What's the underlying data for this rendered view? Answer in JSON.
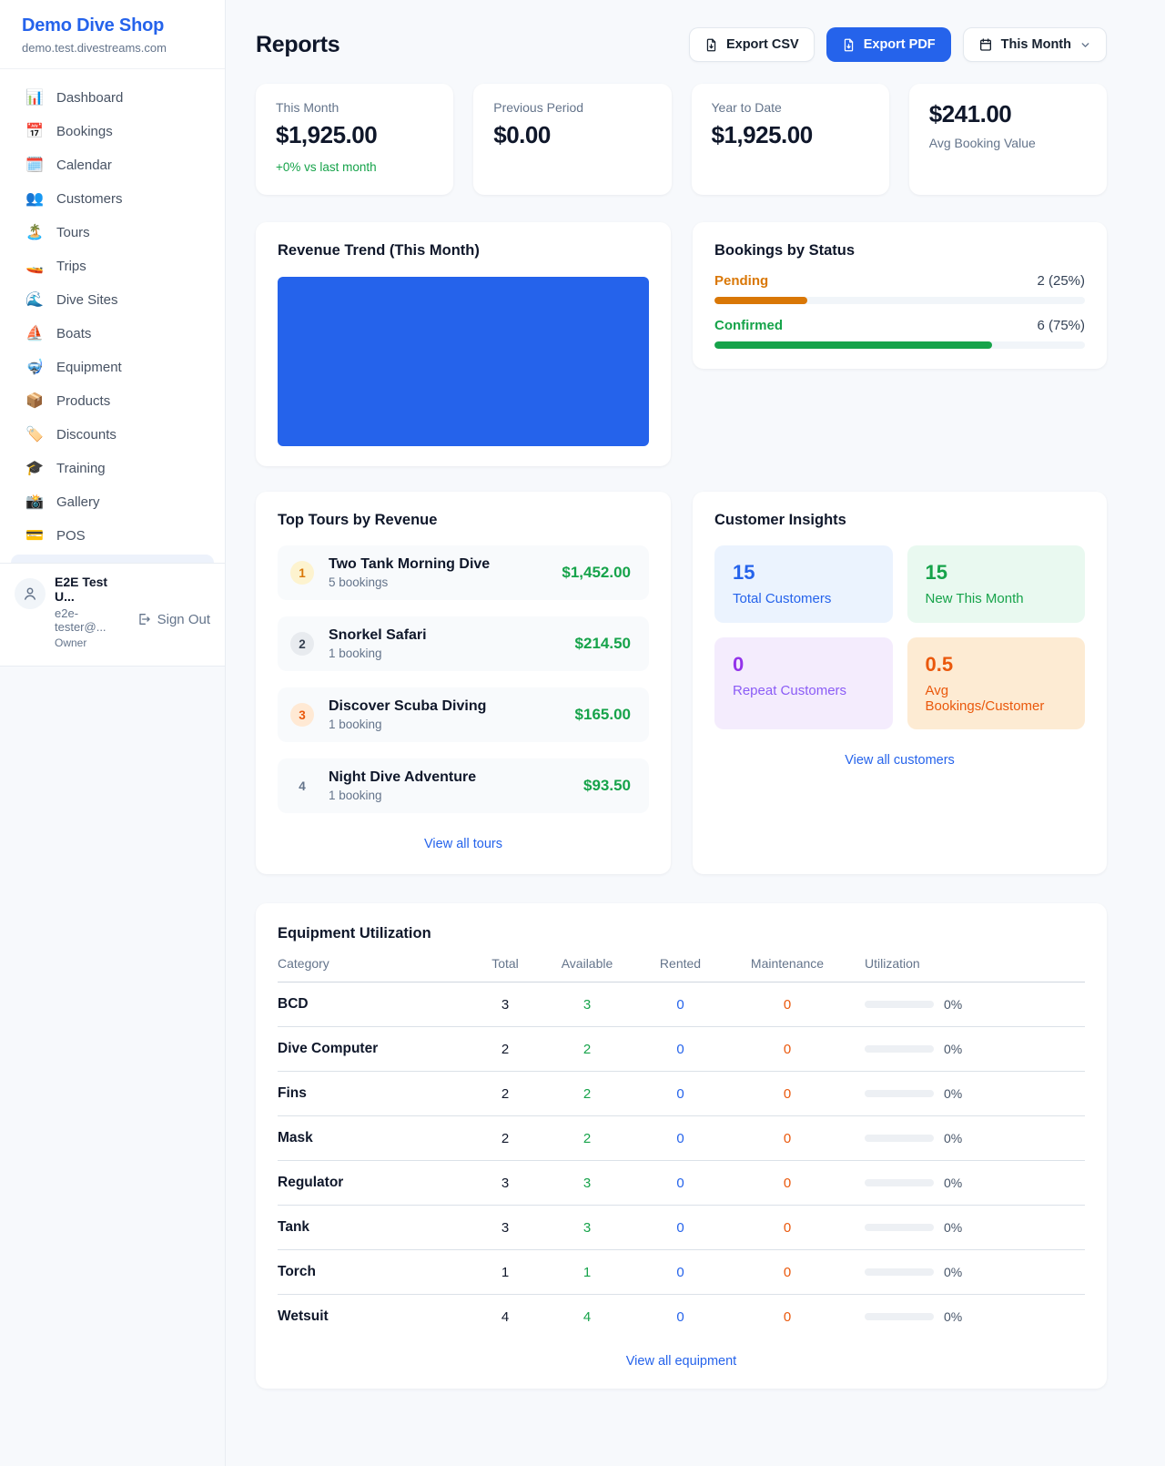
{
  "sidebar": {
    "brand": {
      "name": "Demo Dive Shop",
      "domain": "demo.test.divestreams.com"
    },
    "nav": [
      {
        "label": "Dashboard",
        "icon": "📊",
        "icon_name": "dashboard-icon"
      },
      {
        "label": "Bookings",
        "icon": "📅",
        "icon_name": "bookings-calendar-icon"
      },
      {
        "label": "Calendar",
        "icon": "🗓️",
        "icon_name": "calendar-icon"
      },
      {
        "label": "Customers",
        "icon": "👥",
        "icon_name": "customers-icon"
      },
      {
        "label": "Tours",
        "icon": "🏝️",
        "icon_name": "tours-island-icon"
      },
      {
        "label": "Trips",
        "icon": "🚤",
        "icon_name": "trips-boat-icon"
      },
      {
        "label": "Dive Sites",
        "icon": "🌊",
        "icon_name": "dive-sites-wave-icon"
      },
      {
        "label": "Boats",
        "icon": "⛵",
        "icon_name": "boats-sailboat-icon"
      },
      {
        "label": "Equipment",
        "icon": "🤿",
        "icon_name": "equipment-mask-icon"
      },
      {
        "label": "Products",
        "icon": "📦",
        "icon_name": "products-package-icon"
      },
      {
        "label": "Discounts",
        "icon": "🏷️",
        "icon_name": "discounts-tag-icon"
      },
      {
        "label": "Training",
        "icon": "🎓",
        "icon_name": "training-cap-icon"
      },
      {
        "label": "Gallery",
        "icon": "📸",
        "icon_name": "gallery-camera-icon"
      },
      {
        "label": "POS",
        "icon": "💳",
        "icon_name": "pos-card-icon"
      }
    ],
    "user": {
      "name": "E2E Test U...",
      "email": "e2e-tester@...",
      "role": "Owner",
      "sign_out": "Sign Out"
    }
  },
  "header": {
    "title": "Reports",
    "export_csv": "Export CSV",
    "export_pdf": "Export PDF",
    "period": "This Month",
    "accent_color": "#2563eb"
  },
  "stats": [
    {
      "label": "This Month",
      "value": "$1,925.00",
      "delta": "+0% vs last month"
    },
    {
      "label": "Previous Period",
      "value": "$0.00"
    },
    {
      "label": "Year to Date",
      "value": "$1,925.00"
    },
    {
      "label": "Avg Booking Value",
      "value": "$241.00",
      "value_first": true
    }
  ],
  "revenue_trend": {
    "title": "Revenue Trend (This Month)",
    "chart_data": {
      "type": "area",
      "title": "Revenue Trend (This Month)",
      "categories": [
        "This Month"
      ],
      "series": [
        {
          "name": "Revenue",
          "values": [
            1925
          ]
        }
      ],
      "ylim": [
        0,
        1925
      ],
      "legend": false,
      "grid": false,
      "note": "solid filled area covering entire plot region",
      "color": "#2563eb"
    }
  },
  "bookings_by_status": {
    "title": "Bookings by Status",
    "items": [
      {
        "label": "Pending",
        "value": "2 (25%)",
        "count": 2,
        "pct": 25,
        "color": "#d97706"
      },
      {
        "label": "Confirmed",
        "value": "6 (75%)",
        "count": 6,
        "pct": 75,
        "color": "#16a34a"
      }
    ]
  },
  "top_tours": {
    "title": "Top Tours by Revenue",
    "items": [
      {
        "rank": "1",
        "name": "Two Tank Morning Dive",
        "bookings": "5 bookings",
        "revenue": "$1,452.00",
        "badge_bg": "#fdf3cf",
        "badge_color": "#d97706"
      },
      {
        "rank": "2",
        "name": "Snorkel Safari",
        "bookings": "1 booking",
        "revenue": "$214.50",
        "badge_bg": "#e8ebef",
        "badge_color": "#374151"
      },
      {
        "rank": "3",
        "name": "Discover Scuba Diving",
        "bookings": "1 booking",
        "revenue": "$165.00",
        "badge_bg": "#ffe9d4",
        "badge_color": "#ea580c"
      },
      {
        "rank": "4",
        "name": "Night Dive Adventure",
        "bookings": "1 booking",
        "revenue": "$93.50",
        "badge_bg": "transparent",
        "badge_color": "#64748b"
      }
    ],
    "revenue_color": "#16a34a",
    "link": "View all tours"
  },
  "customer_insights": {
    "title": "Customer Insights",
    "tiles": [
      {
        "value": "15",
        "label": "Total Customers",
        "bg": "#ebf3fe",
        "value_color": "#2563eb",
        "label_color": "#2563eb"
      },
      {
        "value": "15",
        "label": "New This Month",
        "bg": "#e9f9f0",
        "value_color": "#16a34a",
        "label_color": "#16a34a"
      },
      {
        "value": "0",
        "label": "Repeat Customers",
        "bg": "#f4ecfd",
        "value_color": "#9333ea",
        "label_color": "#8b5cf6"
      },
      {
        "value": "0.5",
        "label": "Avg Bookings/Customer",
        "bg": "#fdebd3",
        "value_color": "#ea580c",
        "label_color": "#ea580c"
      }
    ],
    "link": "View all customers"
  },
  "equipment": {
    "title": "Equipment Utilization",
    "columns": [
      "Category",
      "Total",
      "Available",
      "Rented",
      "Maintenance",
      "Utilization"
    ],
    "column_colors": {
      "total": "#0f172a",
      "available": "#16a34a",
      "rented": "#2563eb",
      "maintenance": "#ea580c"
    },
    "rows": [
      {
        "category": "BCD",
        "total": "3",
        "available": "3",
        "rented": "0",
        "maintenance": "0",
        "utilization_pct": 0,
        "utilization_label": "0%"
      },
      {
        "category": "Dive Computer",
        "total": "2",
        "available": "2",
        "rented": "0",
        "maintenance": "0",
        "utilization_pct": 0,
        "utilization_label": "0%"
      },
      {
        "category": "Fins",
        "total": "2",
        "available": "2",
        "rented": "0",
        "maintenance": "0",
        "utilization_pct": 0,
        "utilization_label": "0%"
      },
      {
        "category": "Mask",
        "total": "2",
        "available": "2",
        "rented": "0",
        "maintenance": "0",
        "utilization_pct": 0,
        "utilization_label": "0%"
      },
      {
        "category": "Regulator",
        "total": "3",
        "available": "3",
        "rented": "0",
        "maintenance": "0",
        "utilization_pct": 0,
        "utilization_label": "0%"
      },
      {
        "category": "Tank",
        "total": "3",
        "available": "3",
        "rented": "0",
        "maintenance": "0",
        "utilization_pct": 0,
        "utilization_label": "0%"
      },
      {
        "category": "Torch",
        "total": "1",
        "available": "1",
        "rented": "0",
        "maintenance": "0",
        "utilization_pct": 0,
        "utilization_label": "0%"
      },
      {
        "category": "Wetsuit",
        "total": "4",
        "available": "4",
        "rented": "0",
        "maintenance": "0",
        "utilization_pct": 0,
        "utilization_label": "0%"
      }
    ],
    "link": "View all equipment"
  }
}
